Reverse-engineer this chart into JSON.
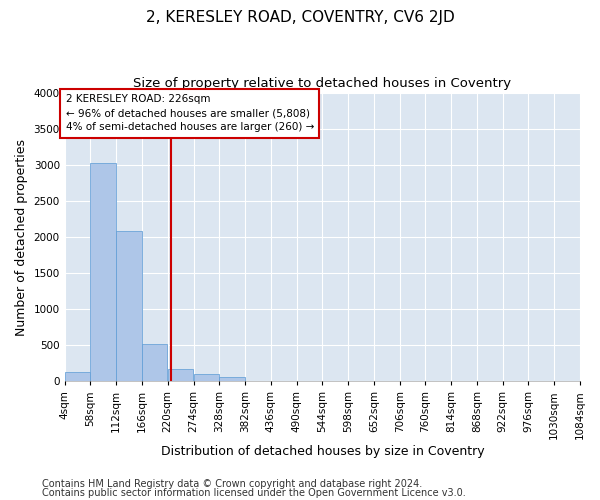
{
  "title": "2, KERESLEY ROAD, COVENTRY, CV6 2JD",
  "subtitle": "Size of property relative to detached houses in Coventry",
  "xlabel": "Distribution of detached houses by size in Coventry",
  "ylabel": "Number of detached properties",
  "bar_color": "#aec6e8",
  "bar_edge_color": "#5b9bd5",
  "background_color": "#dce6f1",
  "grid_color": "#ffffff",
  "red_line_x": 226,
  "annotation_text": "2 KERESLEY ROAD: 226sqm\n← 96% of detached houses are smaller (5,808)\n4% of semi-detached houses are larger (260) →",
  "annotation_box_color": "#ffffff",
  "annotation_box_edge": "#cc0000",
  "red_line_color": "#cc0000",
  "footer_line1": "Contains HM Land Registry data © Crown copyright and database right 2024.",
  "footer_line2": "Contains public sector information licensed under the Open Government Licence v3.0.",
  "bins": [
    4,
    58,
    112,
    166,
    220,
    274,
    328,
    382,
    436,
    490,
    544,
    598,
    652,
    706,
    760,
    814,
    868,
    922,
    976,
    1030,
    1084
  ],
  "counts": [
    130,
    3030,
    2080,
    520,
    175,
    95,
    55,
    0,
    0,
    0,
    0,
    0,
    0,
    0,
    0,
    0,
    0,
    0,
    0,
    0
  ],
  "ylim": [
    0,
    4000
  ],
  "yticks": [
    0,
    500,
    1000,
    1500,
    2000,
    2500,
    3000,
    3500,
    4000
  ],
  "title_fontsize": 11,
  "subtitle_fontsize": 9.5,
  "axis_label_fontsize": 9,
  "tick_fontsize": 7.5,
  "footer_fontsize": 7,
  "fig_bg": "#ffffff"
}
